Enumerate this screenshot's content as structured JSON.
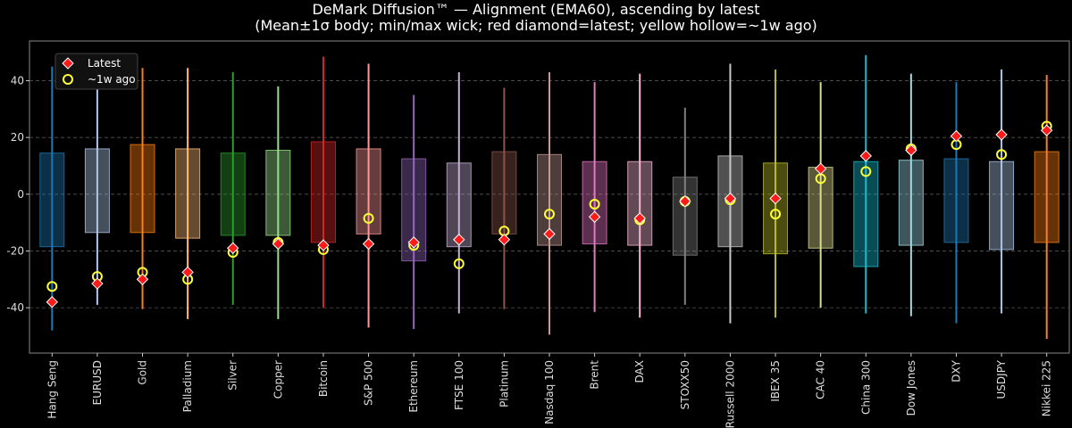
{
  "chart_data": {
    "type": "box",
    "title": "DeMark Diffusion™ — Alignment (EMA60), ascending by latest",
    "subtitle": "(Mean±1σ body; min/max wick; red diamond=latest; yellow hollow=~1w ago)",
    "xlabel": "",
    "ylabel": "",
    "ylim": [
      -56,
      54
    ],
    "yticks": [
      -40,
      -20,
      0,
      20,
      40
    ],
    "grid": "horizontal dashed",
    "legend": {
      "placement": "top-left",
      "entries": [
        "Latest",
        "~1w ago"
      ]
    },
    "categories": [
      "Hang Seng",
      "EURUSD",
      "Gold",
      "Palladium",
      "Silver",
      "Copper",
      "Bitcoin",
      "S&P 500",
      "Ethereum",
      "FTSE 100",
      "Platinum",
      "Nasdaq 100",
      "Brent",
      "DAX",
      "STOXX50",
      "Russell 2000",
      "IBEX 35",
      "CAC 40",
      "China 300",
      "Dow Jones",
      "DXY",
      "USDJPY",
      "Nikkei 225"
    ],
    "colors": [
      "#1f77b4",
      "#aec7e8",
      "#ff7f0e",
      "#ffbb78",
      "#2ca02c",
      "#98df8a",
      "#d62728",
      "#ff9896",
      "#9467bd",
      "#c5b0d5",
      "#8c564b",
      "#c49c94",
      "#e377c2",
      "#f7b6d2",
      "#7f7f7f",
      "#c7c7c7",
      "#bcbd22",
      "#dbdb8d",
      "#17becf",
      "#9edae5",
      "#1f77b4",
      "#aec7e8",
      "#ff7f0e"
    ],
    "body_low": [
      -18.5,
      -13.5,
      -13.5,
      -15.5,
      -14.5,
      -14.5,
      -17,
      -14,
      -23.5,
      -18.5,
      -14,
      -18,
      -17.5,
      -18,
      -21.5,
      -18.5,
      -21,
      -19,
      -25.5,
      -18,
      -17,
      -19.5,
      -17
    ],
    "body_high": [
      14.5,
      16,
      17.5,
      16,
      14.5,
      15.5,
      18.5,
      16,
      12.5,
      11,
      15,
      14,
      11.5,
      11.5,
      6,
      13.5,
      11,
      9.5,
      11.5,
      12,
      12.5,
      11.5,
      15
    ],
    "wick_min": [
      -48,
      -39,
      -40.5,
      -44,
      -39,
      -44,
      -40,
      -47,
      -47.5,
      -42,
      -40.5,
      -49.5,
      -41.5,
      -43.5,
      -39,
      -45.5,
      -43.5,
      -40,
      -42,
      -43,
      -45.5,
      -42,
      -51
    ],
    "wick_max": [
      45,
      44,
      44.5,
      44.5,
      43,
      38,
      48.5,
      46,
      35,
      43,
      37.5,
      43,
      39.5,
      42.5,
      30.5,
      46,
      44,
      39.5,
      49,
      42.5,
      39.5,
      44,
      42
    ],
    "latest": [
      -38,
      -31.5,
      -30,
      -27.5,
      -19,
      -17.5,
      -18,
      -17.5,
      -17,
      -16,
      -16,
      -14,
      -8,
      -8.5,
      -2.5,
      -1.5,
      -1.5,
      9,
      13.5,
      15.5,
      20.5,
      21,
      22.5
    ],
    "week_ago": [
      -32.5,
      -29,
      -27.5,
      -30,
      -20.5,
      -17,
      -19.5,
      -8.5,
      -18,
      -24.5,
      -13,
      -7,
      -3.5,
      -9,
      -2.5,
      -2,
      -7,
      5.5,
      8,
      16,
      17.5,
      14,
      24
    ]
  }
}
